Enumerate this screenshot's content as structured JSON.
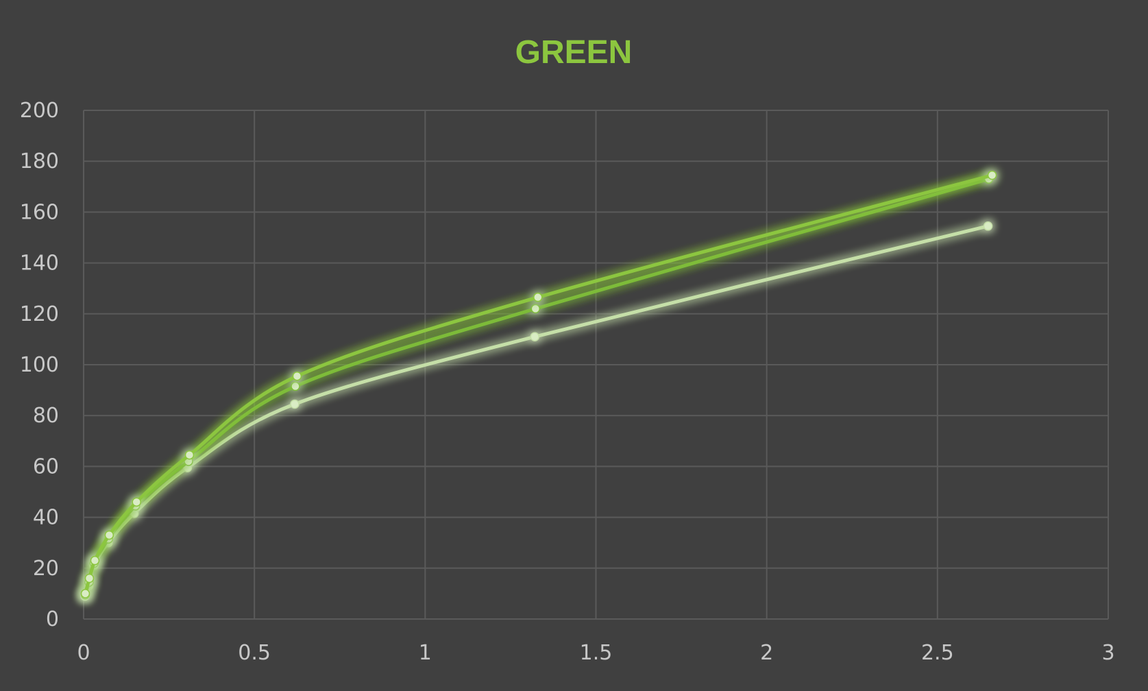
{
  "chart_data": {
    "type": "scatter",
    "title": "GREEN",
    "xlabel": "",
    "ylabel": "",
    "xlim": [
      0,
      3
    ],
    "ylim": [
      0,
      200
    ],
    "x_ticks": [
      "0",
      "0.5",
      "1",
      "1.5",
      "2",
      "2.5",
      "3"
    ],
    "y_ticks": [
      "0",
      "20",
      "40",
      "60",
      "80",
      "100",
      "120",
      "140",
      "160",
      "180",
      "200"
    ],
    "grid": true,
    "legend": "none",
    "smooth_lines": true,
    "series": [
      {
        "color": "#8cc63f",
        "points": [
          [
            0.005,
            10
          ],
          [
            0.017,
            16
          ],
          [
            0.033,
            23
          ],
          [
            0.075,
            33
          ],
          [
            0.155,
            46
          ],
          [
            0.31,
            64.5
          ],
          [
            0.625,
            95.5
          ],
          [
            1.33,
            126.5
          ],
          [
            2.66,
            174.5
          ]
        ]
      },
      {
        "color": "#7dbb3a",
        "points": [
          [
            0.005,
            9.5
          ],
          [
            0.016,
            14.5
          ],
          [
            0.031,
            22
          ],
          [
            0.073,
            31.5
          ],
          [
            0.152,
            44.5
          ],
          [
            0.307,
            62
          ],
          [
            0.62,
            91.5
          ],
          [
            1.323,
            122
          ],
          [
            2.65,
            173
          ]
        ]
      },
      {
        "color": "#c5dfa8",
        "points": [
          [
            0.004,
            9
          ],
          [
            0.015,
            13
          ],
          [
            0.03,
            21
          ],
          [
            0.072,
            30
          ],
          [
            0.148,
            41.5
          ],
          [
            0.304,
            59.5
          ],
          [
            0.618,
            84.5
          ],
          [
            1.321,
            111
          ],
          [
            2.648,
            154.5
          ]
        ]
      }
    ]
  },
  "colors": {
    "background": "#404040",
    "grid": "#5a5a5a",
    "axis_text": "#c8c8c8",
    "title": "#8cc63f"
  }
}
